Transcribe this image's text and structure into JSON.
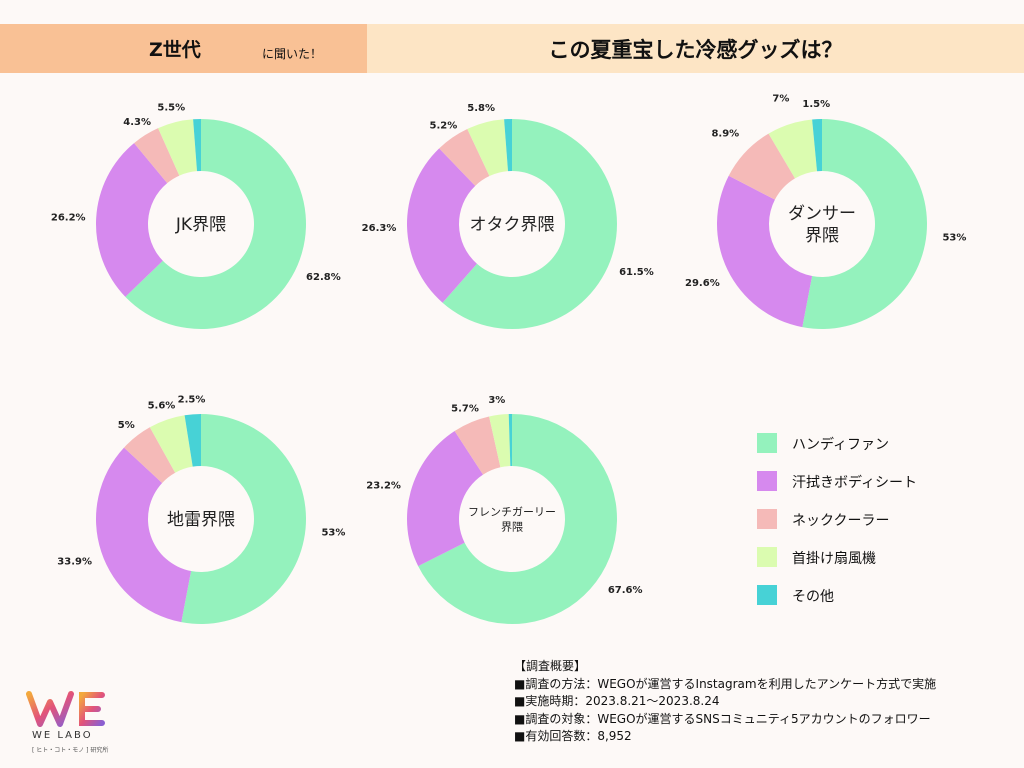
{
  "header": {
    "generation": "Z世代",
    "asked": "に聞いた！",
    "question": "この夏重宝した冷感グッズは？"
  },
  "colors": {
    "handy_fan": "#94f2bd",
    "sweat_sheet": "#d689ee",
    "neck_cooler": "#f5bab8",
    "neck_fan": "#dbfcb0",
    "other": "#47d2d6",
    "header_left": "#f9c195",
    "header_right": "#fde5c5"
  },
  "chart_data": [
    {
      "type": "pie",
      "title": "JK界隈",
      "title_lines": [
        "JK界隈"
      ],
      "categories": [
        "ハンディファン",
        "汗拭きボディシート",
        "ネッククーラー",
        "首掛け扇風機",
        "その他"
      ],
      "values": [
        62.8,
        26.2,
        4.3,
        5.5,
        1.2
      ],
      "labels": [
        "62.8%",
        "26.2%",
        "4.3%",
        "5.5%",
        ""
      ]
    },
    {
      "type": "pie",
      "title": "オタク界隈",
      "title_lines": [
        "オタク界隈"
      ],
      "categories": [
        "ハンディファン",
        "汗拭きボディシート",
        "ネッククーラー",
        "首掛け扇風機",
        "その他"
      ],
      "values": [
        61.5,
        26.3,
        5.2,
        5.8,
        1.2
      ],
      "labels": [
        "61.5%",
        "26.3%",
        "5.2%",
        "5.8%",
        ""
      ]
    },
    {
      "type": "pie",
      "title": "ダンサー界隈",
      "title_lines": [
        "ダンサー",
        "界隈"
      ],
      "categories": [
        "ハンディファン",
        "汗拭きボディシート",
        "ネッククーラー",
        "首掛け扇風機",
        "その他"
      ],
      "values": [
        53,
        29.6,
        8.9,
        7,
        1.5
      ],
      "labels": [
        "53%",
        "29.6%",
        "8.9%",
        "7%",
        "1.5%"
      ]
    },
    {
      "type": "pie",
      "title": "地雷界隈",
      "title_lines": [
        "地雷界隈"
      ],
      "categories": [
        "ハンディファン",
        "汗拭きボディシート",
        "ネッククーラー",
        "首掛け扇風機",
        "その他"
      ],
      "values": [
        53,
        33.9,
        5,
        5.6,
        2.5
      ],
      "labels": [
        "53%",
        "33.9%",
        "5%",
        "5.6%",
        "2.5%"
      ]
    },
    {
      "type": "pie",
      "title": "フレンチガーリー界隈",
      "title_lines": [
        "フレンチガーリー",
        "界隈"
      ],
      "categories": [
        "ハンディファン",
        "汗拭きボディシート",
        "ネッククーラー",
        "首掛け扇風機",
        "その他"
      ],
      "values": [
        67.6,
        23.2,
        5.7,
        3,
        0.5
      ],
      "labels": [
        "67.6%",
        "23.2%",
        "5.7%",
        "3%",
        ""
      ]
    }
  ],
  "legend": [
    {
      "label": "ハンディファン",
      "color": "#94f2bd"
    },
    {
      "label": "汗拭きボディシート",
      "color": "#d689ee"
    },
    {
      "label": "ネッククーラー",
      "color": "#f5bab8"
    },
    {
      "label": "首掛け扇風機",
      "color": "#dbfcb0"
    },
    {
      "label": "その他",
      "color": "#47d2d6"
    }
  ],
  "survey": {
    "heading": "【調査概要】",
    "method": "■調査の方法：WEGOが運営するInstagramを利用したアンケート方式で実施",
    "period": "■実施時期：2023.8.21〜2023.8.24",
    "target": "■調査の対象：WEGOが運営するSNSコミュニティ5アカウントのフォロワー",
    "responses": "■有効回答数：8,952"
  },
  "logo": {
    "mark": "WE",
    "name": "WE LABO",
    "sub": "[ ヒト・コト・モノ ] 研究所"
  }
}
